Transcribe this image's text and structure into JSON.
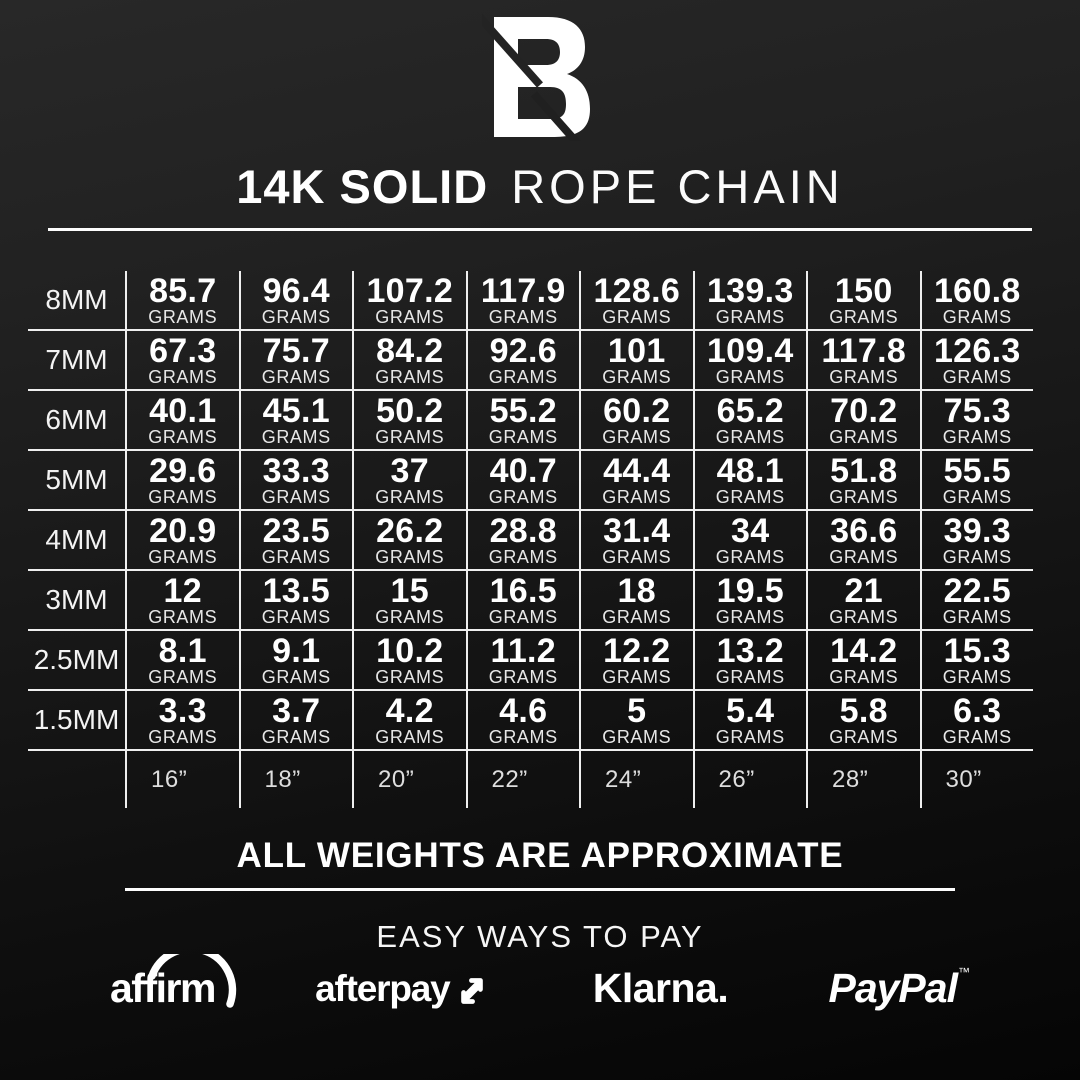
{
  "brand": {
    "monogram": "LB"
  },
  "title": {
    "emphasis": "14K SOLID",
    "rest": "ROPE CHAIN"
  },
  "table": {
    "unit_label": "GRAMS",
    "rows": [
      {
        "size": "8MM",
        "values": [
          "85.7",
          "96.4",
          "107.2",
          "117.9",
          "128.6",
          "139.3",
          "150",
          "160.8"
        ]
      },
      {
        "size": "7MM",
        "values": [
          "67.3",
          "75.7",
          "84.2",
          "92.6",
          "101",
          "109.4",
          "117.8",
          "126.3"
        ]
      },
      {
        "size": "6MM",
        "values": [
          "40.1",
          "45.1",
          "50.2",
          "55.2",
          "60.2",
          "65.2",
          "70.2",
          "75.3"
        ]
      },
      {
        "size": "5MM",
        "values": [
          "29.6",
          "33.3",
          "37",
          "40.7",
          "44.4",
          "48.1",
          "51.8",
          "55.5"
        ]
      },
      {
        "size": "4MM",
        "values": [
          "20.9",
          "23.5",
          "26.2",
          "28.8",
          "31.4",
          "34",
          "36.6",
          "39.3"
        ]
      },
      {
        "size": "3MM",
        "values": [
          "12",
          "13.5",
          "15",
          "16.5",
          "18",
          "19.5",
          "21",
          "22.5"
        ]
      },
      {
        "size": "2.5MM",
        "values": [
          "8.1",
          "9.1",
          "10.2",
          "11.2",
          "12.2",
          "13.2",
          "14.2",
          "15.3"
        ]
      },
      {
        "size": "1.5MM",
        "values": [
          "3.3",
          "3.7",
          "4.2",
          "4.6",
          "5",
          "5.4",
          "5.8",
          "6.3"
        ]
      }
    ],
    "lengths": [
      "16”",
      "18”",
      "20”",
      "22”",
      "24”",
      "26”",
      "28”",
      "30”"
    ]
  },
  "footnote": "ALL WEIGHTS ARE APPROXIMATE",
  "payments": {
    "heading": "EASY WAYS TO PAY",
    "providers": [
      {
        "name": "affirm",
        "label": "affirm"
      },
      {
        "name": "afterpay",
        "label": "afterpay"
      },
      {
        "name": "klarna",
        "label": "Klarna."
      },
      {
        "name": "paypal",
        "label": "PayPal",
        "tm": "™"
      }
    ]
  },
  "colors": {
    "background_top": "#242424",
    "background_bottom": "#060606",
    "text": "#ffffff",
    "grid_line": "#efefef"
  },
  "chart_data": {
    "type": "table",
    "title": "14K SOLID ROPE CHAIN",
    "unit": "grams",
    "row_dimension": "chain thickness (mm)",
    "column_dimension": "chain length (inches)",
    "columns": [
      "16”",
      "18”",
      "20”",
      "22”",
      "24”",
      "26”",
      "28”",
      "30”"
    ],
    "rows": [
      "8MM",
      "7MM",
      "6MM",
      "5MM",
      "4MM",
      "3MM",
      "2.5MM",
      "1.5MM"
    ],
    "values": [
      [
        85.7,
        96.4,
        107.2,
        117.9,
        128.6,
        139.3,
        150,
        160.8
      ],
      [
        67.3,
        75.7,
        84.2,
        92.6,
        101,
        109.4,
        117.8,
        126.3
      ],
      [
        40.1,
        45.1,
        50.2,
        55.2,
        60.2,
        65.2,
        70.2,
        75.3
      ],
      [
        29.6,
        33.3,
        37,
        40.7,
        44.4,
        48.1,
        51.8,
        55.5
      ],
      [
        20.9,
        23.5,
        26.2,
        28.8,
        31.4,
        34,
        36.6,
        39.3
      ],
      [
        12,
        13.5,
        15,
        16.5,
        18,
        19.5,
        21,
        22.5
      ],
      [
        8.1,
        9.1,
        10.2,
        11.2,
        12.2,
        13.2,
        14.2,
        15.3
      ],
      [
        3.3,
        3.7,
        4.2,
        4.6,
        5,
        5.4,
        5.8,
        6.3
      ]
    ],
    "note": "ALL WEIGHTS ARE APPROXIMATE"
  }
}
